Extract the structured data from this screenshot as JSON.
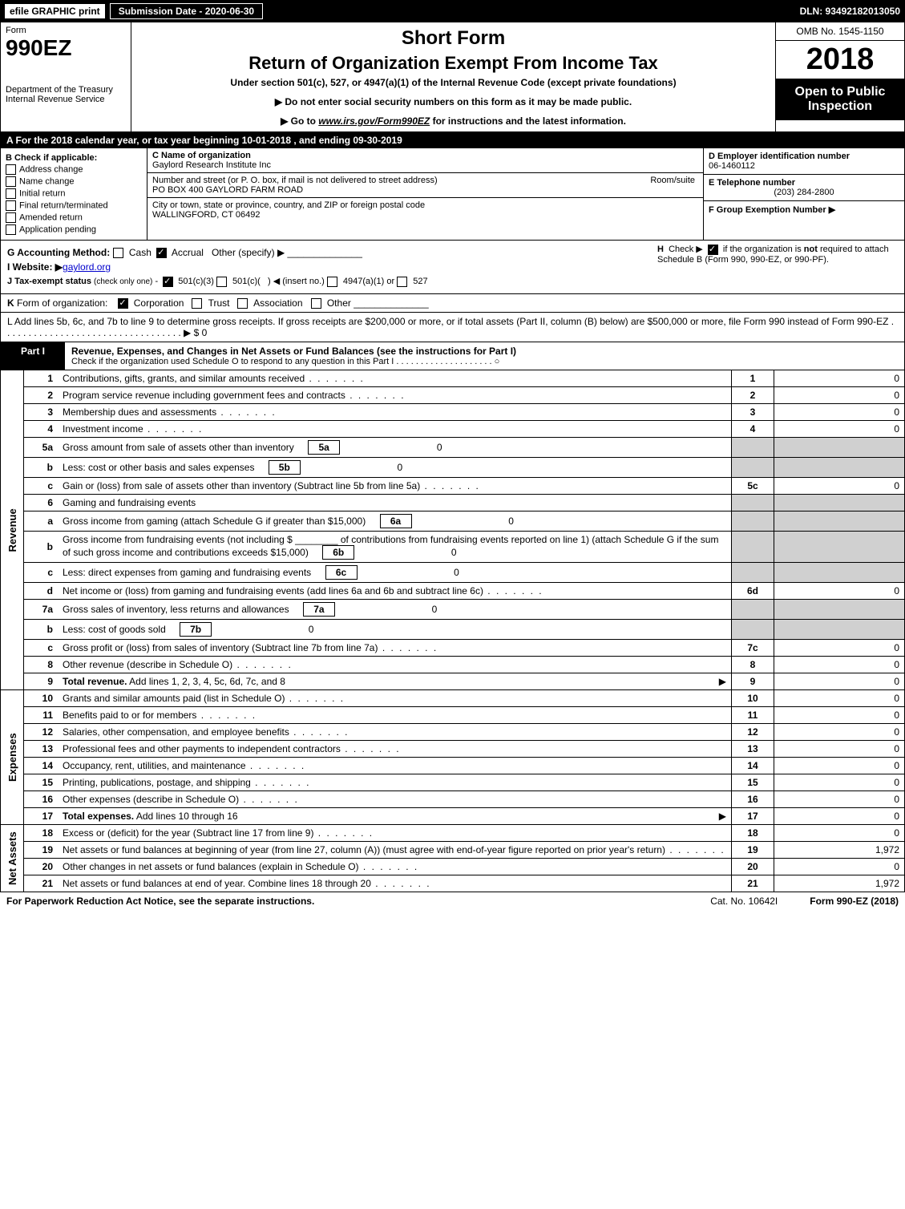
{
  "topbar": {
    "efile": "efile GRAPHIC print",
    "submission": "Submission Date - 2020-06-30",
    "dln": "DLN: 93492182013050"
  },
  "header": {
    "form_label": "Form",
    "form_number": "990EZ",
    "dept": "Department of the Treasury\nInternal Revenue Service",
    "short": "Short Form",
    "title": "Return of Organization Exempt From Income Tax",
    "subtitle": "Under section 501(c), 527, or 4947(a)(1) of the Internal Revenue Code (except private foundations)",
    "note1": "▶ Do not enter social security numbers on this form as it may be made public.",
    "note2_pre": "▶ Go to ",
    "note2_link": "www.irs.gov/Form990EZ",
    "note2_post": " for instructions and the latest information.",
    "omb": "OMB No. 1545-1150",
    "year": "2018",
    "open": "Open to Public Inspection"
  },
  "period": "A  For the 2018 calendar year, or tax year beginning 10-01-2018             , and ending 09-30-2019",
  "boxB": {
    "title": "B  Check if applicable:",
    "items": [
      "Address change",
      "Name change",
      "Initial return",
      "Final return/terminated",
      "Amended return",
      "Application pending"
    ]
  },
  "boxC": {
    "c_label": "C Name of organization",
    "c_value": "Gaylord Research Institute Inc",
    "addr_label": "Number and street (or P. O. box, if mail is not delivered to street address)",
    "addr_value": "PO BOX 400 GAYLORD FARM ROAD",
    "room_label": "Room/suite",
    "city_label": "City or town, state or province, country, and ZIP or foreign postal code",
    "city_value": "WALLINGFORD, CT  06492"
  },
  "boxD": {
    "d_label": "D Employer identification number",
    "d_value": "06-1460112",
    "e_label": "E Telephone number",
    "e_value": "(203) 284-2800",
    "f_label": "F Group Exemption Number  ▶"
  },
  "lower": {
    "g": "G Accounting Method:",
    "g_cash": "Cash",
    "g_accrual": "Accrual",
    "g_other": "Other (specify) ▶",
    "i": "I Website: ▶",
    "i_value": "gaylord.org",
    "j": "J Tax-exempt status (check only one) -  ☑ 501(c)(3)  ○ 501(c)(  ) ◀ (insert no.)  ○ 4947(a)(1) or  ○ 527",
    "h": "H  Check ▶ ☑ if the organization is not required to attach Schedule B (Form 990, 990-EZ, or 990-PF)."
  },
  "lineK": "K Form of organization:   ☑ Corporation   ○ Trust   ○ Association   ○ Other",
  "lineL": "L Add lines 5b, 6c, and 7b to line 9 to determine gross receipts. If gross receipts are $200,000 or more, or if total assets (Part II, column (B) below) are $500,000 or more, file Form 990 instead of Form 990-EZ . . . . . . . . . . . . . . . . . . . . . . . . . . . . . . . . . . ▶ $ 0",
  "part1": {
    "label": "Part I",
    "title": "Revenue, Expenses, and Changes in Net Assets or Fund Balances (see the instructions for Part I)",
    "sub": "Check if the organization used Schedule O to respond to any question in this Part I . . . . . . . . . . . . . . . . . . . .  ○"
  },
  "sections": {
    "revenue": "Revenue",
    "expenses": "Expenses",
    "netassets": "Net Assets"
  },
  "lines": [
    {
      "n": "1",
      "desc": "Contributions, gifts, grants, and similar amounts received",
      "box": "1",
      "amt": "0"
    },
    {
      "n": "2",
      "desc": "Program service revenue including government fees and contracts",
      "box": "2",
      "amt": "0"
    },
    {
      "n": "3",
      "desc": "Membership dues and assessments",
      "box": "3",
      "amt": "0"
    },
    {
      "n": "4",
      "desc": "Investment income",
      "box": "4",
      "amt": "0"
    },
    {
      "n": "5a",
      "desc": "Gross amount from sale of assets other than inventory",
      "ibox": "5a",
      "iamt": "0"
    },
    {
      "n": "b",
      "desc": "Less: cost or other basis and sales expenses",
      "ibox": "5b",
      "iamt": "0"
    },
    {
      "n": "c",
      "desc": "Gain or (loss) from sale of assets other than inventory (Subtract line 5b from line 5a)",
      "box": "5c",
      "amt": "0"
    },
    {
      "n": "6",
      "desc": "Gaming and fundraising events"
    },
    {
      "n": "a",
      "desc": "Gross income from gaming (attach Schedule G if greater than $15,000)",
      "ibox": "6a",
      "iamt": "0"
    },
    {
      "n": "b",
      "desc": "Gross income from fundraising events (not including $ ________ of contributions from fundraising events reported on line 1) (attach Schedule G if the sum of such gross income and contributions exceeds $15,000)",
      "ibox": "6b",
      "iamt": "0"
    },
    {
      "n": "c",
      "desc": "Less: direct expenses from gaming and fundraising events",
      "ibox": "6c",
      "iamt": "0"
    },
    {
      "n": "d",
      "desc": "Net income or (loss) from gaming and fundraising events (add lines 6a and 6b and subtract line 6c)",
      "box": "6d",
      "amt": "0"
    },
    {
      "n": "7a",
      "desc": "Gross sales of inventory, less returns and allowances",
      "ibox": "7a",
      "iamt": "0"
    },
    {
      "n": "b",
      "desc": "Less: cost of goods sold",
      "ibox": "7b",
      "iamt": "0"
    },
    {
      "n": "c",
      "desc": "Gross profit or (loss) from sales of inventory (Subtract line 7b from line 7a)",
      "box": "7c",
      "amt": "0"
    },
    {
      "n": "8",
      "desc": "Other revenue (describe in Schedule O)",
      "box": "8",
      "amt": "0"
    },
    {
      "n": "9",
      "desc": "Total revenue. Add lines 1, 2, 3, 4, 5c, 6d, 7c, and 8",
      "box": "9",
      "amt": "0",
      "bold": true,
      "arrow": true
    }
  ],
  "expense_lines": [
    {
      "n": "10",
      "desc": "Grants and similar amounts paid (list in Schedule O)",
      "box": "10",
      "amt": "0"
    },
    {
      "n": "11",
      "desc": "Benefits paid to or for members",
      "box": "11",
      "amt": "0"
    },
    {
      "n": "12",
      "desc": "Salaries, other compensation, and employee benefits",
      "box": "12",
      "amt": "0"
    },
    {
      "n": "13",
      "desc": "Professional fees and other payments to independent contractors",
      "box": "13",
      "amt": "0"
    },
    {
      "n": "14",
      "desc": "Occupancy, rent, utilities, and maintenance",
      "box": "14",
      "amt": "0"
    },
    {
      "n": "15",
      "desc": "Printing, publications, postage, and shipping",
      "box": "15",
      "amt": "0"
    },
    {
      "n": "16",
      "desc": "Other expenses (describe in Schedule O)",
      "box": "16",
      "amt": "0"
    },
    {
      "n": "17",
      "desc": "Total expenses. Add lines 10 through 16",
      "box": "17",
      "amt": "0",
      "bold": true,
      "arrow": true
    }
  ],
  "netasset_lines": [
    {
      "n": "18",
      "desc": "Excess or (deficit) for the year (Subtract line 17 from line 9)",
      "box": "18",
      "amt": "0"
    },
    {
      "n": "19",
      "desc": "Net assets or fund balances at beginning of year (from line 27, column (A)) (must agree with end-of-year figure reported on prior year's return)",
      "box": "19",
      "amt": "1,972"
    },
    {
      "n": "20",
      "desc": "Other changes in net assets or fund balances (explain in Schedule O)",
      "box": "20",
      "amt": "0"
    },
    {
      "n": "21",
      "desc": "Net assets or fund balances at end of year. Combine lines 18 through 20",
      "box": "21",
      "amt": "1,972"
    }
  ],
  "footer": {
    "notice": "For Paperwork Reduction Act Notice, see the separate instructions.",
    "catno": "Cat. No. 10642I",
    "formref": "Form 990-EZ (2018)"
  }
}
